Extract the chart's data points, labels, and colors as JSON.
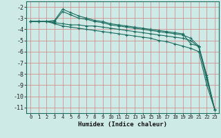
{
  "xlabel": "Humidex (Indice chaleur)",
  "bg_color": "#ceeae6",
  "line_color": "#1a6b5e",
  "xlim": [
    -0.5,
    23.5
  ],
  "ylim": [
    -11.5,
    -1.5
  ],
  "yticks": [
    -2,
    -3,
    -4,
    -5,
    -6,
    -7,
    -8,
    -9,
    -10,
    -11
  ],
  "xticks": [
    0,
    1,
    2,
    3,
    4,
    5,
    6,
    7,
    8,
    9,
    10,
    11,
    12,
    13,
    14,
    15,
    16,
    17,
    18,
    19,
    20,
    21,
    22,
    23
  ],
  "lines": [
    {
      "x": [
        0,
        1,
        2,
        3,
        4,
        5,
        6,
        7,
        8,
        9,
        10,
        11,
        12,
        13,
        14,
        15,
        16,
        17,
        18,
        19,
        20,
        21,
        22,
        23
      ],
      "y": [
        -3.3,
        -3.3,
        -3.3,
        -3.2,
        -2.2,
        -2.5,
        -2.8,
        -3.0,
        -3.2,
        -3.3,
        -3.5,
        -3.6,
        -3.7,
        -3.8,
        -3.9,
        -4.0,
        -4.1,
        -4.2,
        -4.3,
        -4.4,
        -5.3,
        -5.5,
        -8.1,
        -11.2
      ]
    },
    {
      "x": [
        0,
        1,
        2,
        3,
        4,
        5,
        6,
        7,
        8,
        9,
        10,
        11,
        12,
        13,
        14,
        15,
        16,
        17,
        18,
        19,
        20,
        21,
        22,
        23
      ],
      "y": [
        -3.3,
        -3.3,
        -3.3,
        -3.3,
        -2.4,
        -2.7,
        -3.0,
        -3.1,
        -3.3,
        -3.4,
        -3.6,
        -3.7,
        -3.8,
        -3.9,
        -4.0,
        -4.1,
        -4.2,
        -4.3,
        -4.4,
        -4.5,
        -4.8,
        -5.5,
        -8.3,
        -11.2
      ]
    },
    {
      "x": [
        0,
        1,
        2,
        3,
        4,
        5,
        6,
        7,
        8,
        9,
        10,
        11,
        12,
        13,
        14,
        15,
        16,
        17,
        18,
        19,
        20,
        21,
        22,
        23
      ],
      "y": [
        -3.3,
        -3.3,
        -3.3,
        -3.4,
        -3.5,
        -3.6,
        -3.6,
        -3.7,
        -3.7,
        -3.8,
        -3.9,
        -4.0,
        -4.1,
        -4.2,
        -4.3,
        -4.4,
        -4.5,
        -4.6,
        -4.7,
        -4.8,
        -5.0,
        -5.6,
        -8.5,
        -11.2
      ]
    },
    {
      "x": [
        0,
        1,
        2,
        3,
        4,
        5,
        6,
        7,
        8,
        9,
        10,
        11,
        12,
        13,
        14,
        15,
        16,
        17,
        18,
        19,
        20,
        21,
        22,
        23
      ],
      "y": [
        -3.3,
        -3.3,
        -3.3,
        -3.5,
        -3.7,
        -3.8,
        -3.9,
        -4.0,
        -4.1,
        -4.2,
        -4.3,
        -4.4,
        -4.5,
        -4.6,
        -4.7,
        -4.8,
        -5.0,
        -5.1,
        -5.3,
        -5.5,
        -5.7,
        -6.0,
        -9.0,
        -11.2
      ]
    }
  ]
}
